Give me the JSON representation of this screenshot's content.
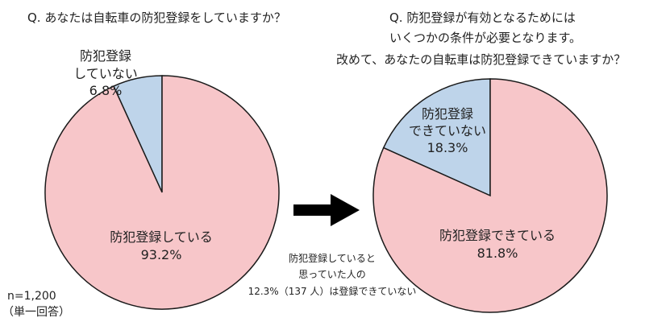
{
  "colors": {
    "main_slice": "#f7c6c9",
    "minor_slice": "#bed4ea",
    "outline": "#1a1a1a",
    "arrow": "#000000",
    "background": "#ffffff"
  },
  "chart_data": [
    {
      "type": "pie",
      "title": "Q. あなたは自転車の防犯登録をしていますか？",
      "slices": [
        {
          "label": [
            "防犯登録",
            "していない"
          ],
          "value": 6.8,
          "value_label": "6.8%",
          "color": "#bed4ea"
        },
        {
          "label": [
            "防犯登録している"
          ],
          "value": 93.2,
          "value_label": "93.2%",
          "color": "#f7c6c9"
        }
      ]
    },
    {
      "type": "pie",
      "title": [
        "Q. 防犯登録が有効となるためには",
        "いくつかの条件が必要となります。",
        "改めて、あなたの自転車は防犯登録できていますか？"
      ],
      "slices": [
        {
          "label": [
            "防犯登録",
            "できていない"
          ],
          "value": 18.3,
          "value_label": "18.3%",
          "color": "#bed4ea"
        },
        {
          "label": [
            "防犯登録できている"
          ],
          "value": 81.8,
          "value_label": "81.8%",
          "color": "#f7c6c9"
        }
      ]
    }
  ],
  "annotation": {
    "lines": [
      "防犯登録していると",
      "思っていた人の",
      "12.3%（137 人）は登録できていない"
    ]
  },
  "sample": {
    "lines": [
      "n=1,200",
      "（単一回答）"
    ]
  }
}
